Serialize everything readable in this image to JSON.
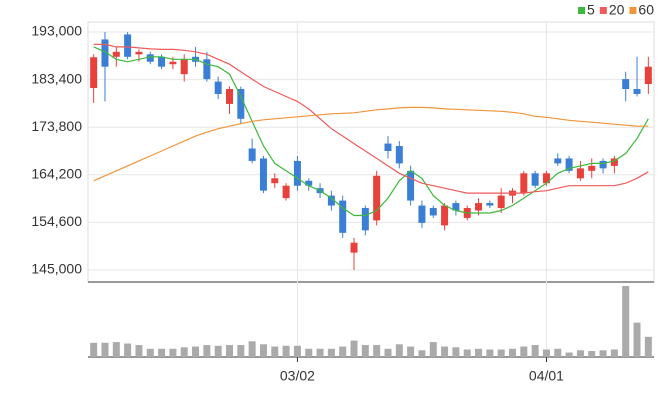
{
  "chart_data": {
    "type": "candlestick",
    "categories": [
      null,
      null,
      null,
      null,
      null,
      null,
      null,
      null,
      null,
      null,
      null,
      null,
      null,
      null,
      null,
      null,
      null,
      null,
      "03/02",
      null,
      null,
      null,
      null,
      null,
      null,
      null,
      null,
      null,
      null,
      null,
      null,
      null,
      null,
      null,
      null,
      null,
      null,
      null,
      null,
      null,
      "04/01",
      null,
      null,
      null,
      null,
      null,
      null,
      null,
      null,
      null
    ],
    "open": [
      181700,
      191500,
      188000,
      192500,
      188500,
      188500,
      188000,
      186500,
      184500,
      188000,
      187500,
      183000,
      178500,
      181500,
      169500,
      167500,
      162500,
      159500,
      167000,
      163000,
      161500,
      160000,
      159000,
      148500,
      157500,
      155000,
      170500,
      170000,
      165000,
      158000,
      157500,
      154000,
      158500,
      155500,
      157000,
      158500,
      157500,
      160000,
      160500,
      164500,
      162500,
      167500,
      167500,
      163500,
      165000,
      167000,
      166000,
      183500,
      181500,
      182500
    ],
    "high": [
      188500,
      193000,
      190000,
      193000,
      189500,
      189000,
      188500,
      188000,
      188500,
      190000,
      189000,
      184000,
      182000,
      182000,
      171500,
      168000,
      164500,
      162500,
      168000,
      163500,
      162500,
      161000,
      160000,
      151500,
      158000,
      165000,
      172000,
      171000,
      166000,
      159000,
      158000,
      158500,
      159000,
      158000,
      159500,
      159000,
      161500,
      161500,
      165000,
      165000,
      165000,
      168500,
      168000,
      167000,
      167500,
      167500,
      168000,
      185000,
      188000,
      188000
    ],
    "low": [
      178700,
      179000,
      186000,
      187500,
      187000,
      186500,
      185500,
      185500,
      183000,
      186000,
      183000,
      179500,
      176500,
      174500,
      166500,
      160500,
      161500,
      159000,
      161000,
      161000,
      159500,
      157000,
      151500,
      145000,
      152000,
      154000,
      167500,
      165500,
      158000,
      153500,
      155500,
      153000,
      156000,
      155000,
      156000,
      157500,
      156500,
      158500,
      160000,
      161500,
      162000,
      166000,
      164500,
      163000,
      163500,
      164500,
      164500,
      179000,
      180000,
      180500
    ],
    "close": [
      187900,
      186000,
      189000,
      188000,
      189000,
      187000,
      186000,
      187000,
      187500,
      187000,
      183500,
      180500,
      181500,
      175500,
      167000,
      161000,
      163500,
      162000,
      162000,
      162000,
      160500,
      158000,
      152500,
      150500,
      153000,
      164000,
      169000,
      166500,
      159000,
      154500,
      156000,
      158000,
      157000,
      157500,
      158500,
      158000,
      160000,
      161000,
      164500,
      162000,
      164500,
      166500,
      165000,
      165500,
      166000,
      165500,
      167500,
      181500,
      180500,
      186000
    ],
    "up_color": "#e8413b",
    "down_color": "#3a7fd5",
    "series": [
      {
        "name": "5",
        "color": "#3cb93c",
        "values": [
          190000,
          189000,
          187500,
          187000,
          187500,
          188000,
          188000,
          187500,
          187500,
          187500,
          186500,
          186000,
          184500,
          180000,
          175000,
          170000,
          166500,
          165000,
          163500,
          162000,
          161000,
          159500,
          157500,
          156000,
          156000,
          157000,
          159500,
          163000,
          165000,
          163500,
          160000,
          158000,
          157000,
          156500,
          156500,
          156500,
          157000,
          158000,
          159500,
          161000,
          162500,
          164500,
          165500,
          166000,
          166500,
          166500,
          167000,
          168500,
          171500,
          175500
        ]
      },
      {
        "name": "20",
        "color": "#ef5a5a",
        "values": [
          190500,
          190500,
          190000,
          190000,
          189800,
          189600,
          189500,
          189500,
          189300,
          189000,
          188500,
          187500,
          186500,
          185000,
          183500,
          182000,
          181000,
          180000,
          179000,
          177500,
          175500,
          173500,
          172000,
          170500,
          169000,
          167500,
          166000,
          164500,
          163500,
          162500,
          162000,
          161500,
          161000,
          160500,
          160500,
          160500,
          160500,
          160500,
          160500,
          160800,
          161000,
          161500,
          162000,
          162000,
          162000,
          162000,
          162000,
          162500,
          163500,
          164800
        ]
      },
      {
        "name": "60",
        "color": "#f0953a",
        "values": [
          163000,
          164000,
          165000,
          166000,
          167000,
          168000,
          169000,
          170000,
          171000,
          172000,
          172800,
          173500,
          174000,
          174500,
          175000,
          175300,
          175500,
          175700,
          175900,
          176100,
          176300,
          176500,
          176600,
          176700,
          177000,
          177300,
          177500,
          177700,
          177800,
          177800,
          177700,
          177500,
          177400,
          177300,
          177200,
          177100,
          177000,
          176800,
          176500,
          176000,
          175800,
          175500,
          175200,
          175000,
          174800,
          174600,
          174400,
          174200,
          174000,
          174000
        ]
      }
    ],
    "volume": {
      "color": "#aaaaaa",
      "values": [
        19,
        19,
        20,
        18,
        16,
        11,
        11,
        11,
        13,
        14,
        16,
        15,
        16,
        16,
        21,
        17,
        14,
        15,
        15,
        11,
        11,
        11,
        14,
        22,
        16,
        16,
        11,
        17,
        14,
        9,
        20,
        14,
        13,
        10,
        11,
        10,
        10,
        11,
        14,
        16,
        10,
        11,
        6,
        9,
        8,
        9,
        10,
        95,
        46,
        27
      ]
    },
    "ylim": [
      145000,
      193000
    ],
    "yticks": [
      {
        "value": 193000,
        "label": "193,000"
      },
      {
        "value": 183400,
        "label": "183,400"
      },
      {
        "value": 173800,
        "label": "173,800"
      },
      {
        "value": 164200,
        "label": "164,200"
      },
      {
        "value": 154600,
        "label": "154,600"
      },
      {
        "value": 145000,
        "label": "145,000"
      }
    ],
    "grid": true,
    "legend": "top-right"
  }
}
